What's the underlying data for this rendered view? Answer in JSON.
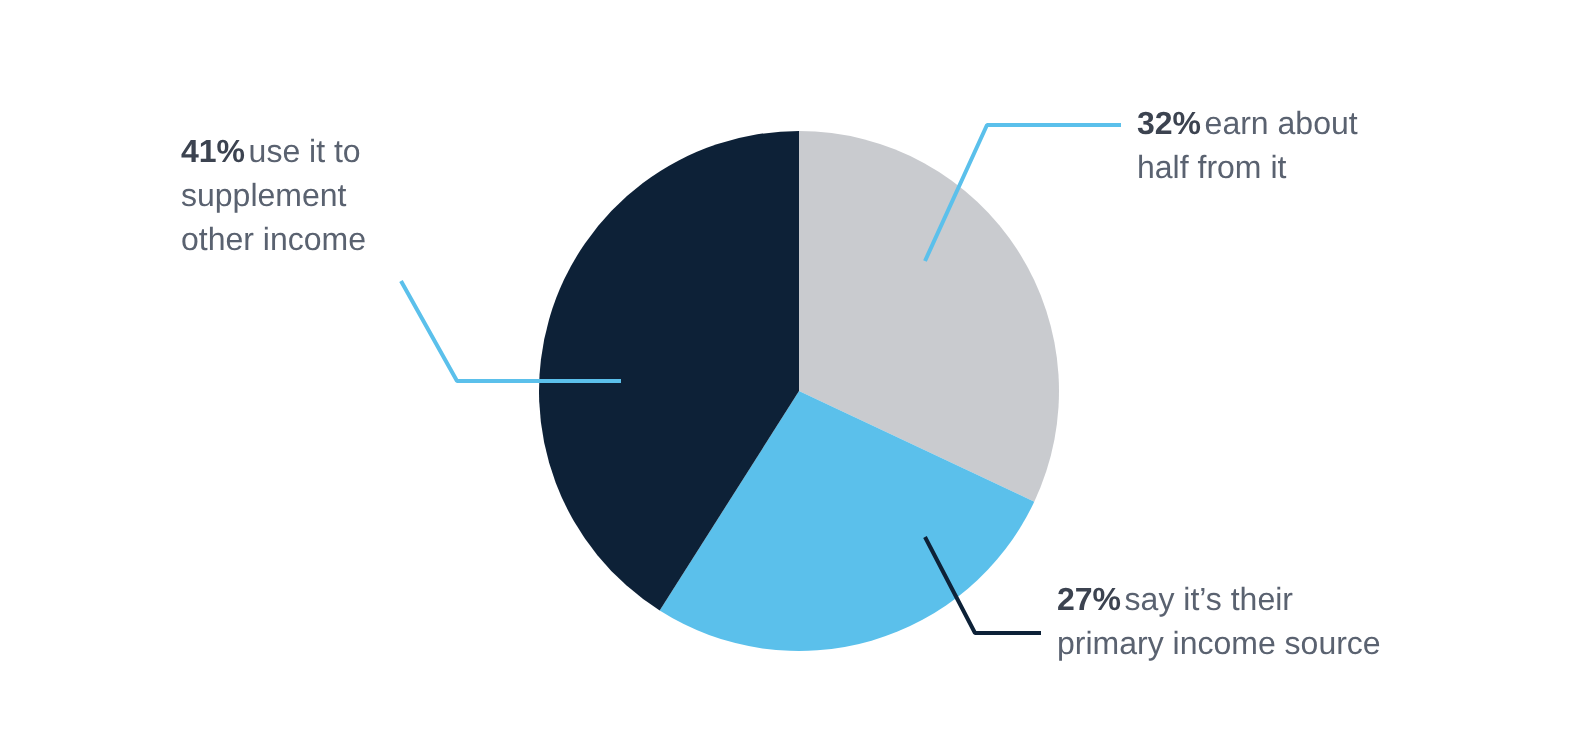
{
  "chart_data": {
    "type": "pie",
    "categories": [
      "earn about half from it",
      "say it’s their primary income source",
      "use it to supplement other income"
    ],
    "values": [
      32,
      27,
      41
    ],
    "value_labels": [
      "32%",
      "27%",
      "41%"
    ],
    "colors": [
      "#c9cbcf",
      "#5bc0eb",
      "#0d2137"
    ]
  }
}
